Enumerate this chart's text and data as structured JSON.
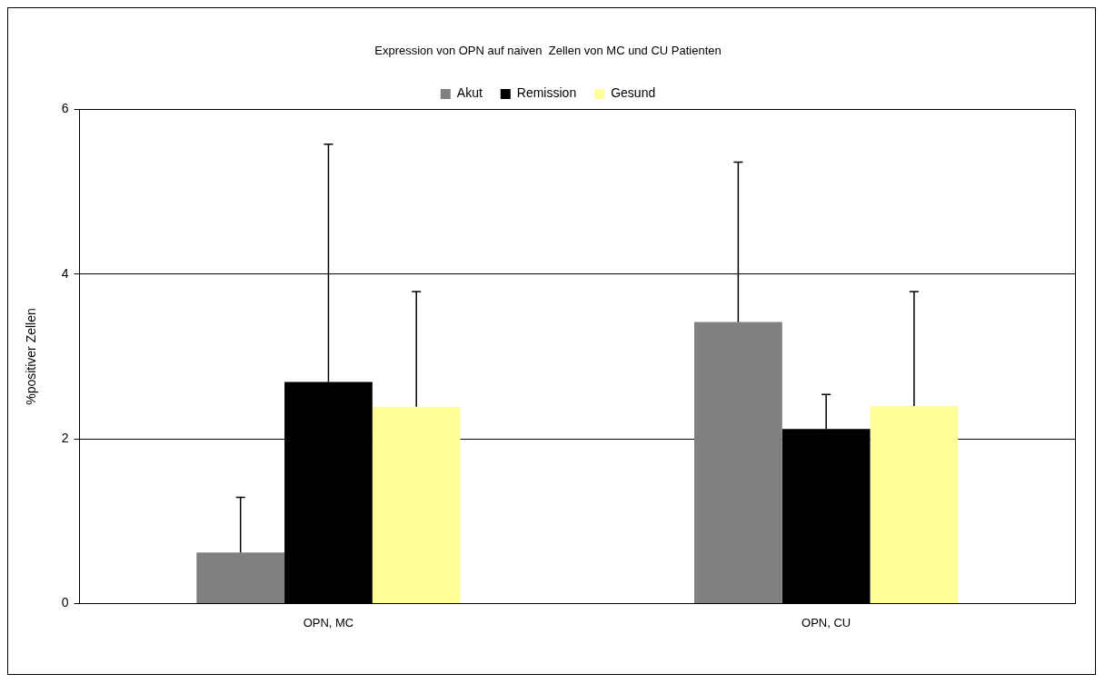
{
  "chart_data": {
    "type": "bar",
    "title": "Expression von OPN auf naiven  Zellen von MC und CU Patienten",
    "ylabel": "%positiver Zellen",
    "categories": [
      "OPN, MC",
      "OPN, CU"
    ],
    "series": [
      {
        "name": "Akut",
        "color": "#808080",
        "values": [
          0.62,
          3.42
        ],
        "errors": [
          [
            0.62,
            1.29
          ],
          [
            3.42,
            5.36
          ]
        ]
      },
      {
        "name": "Remission",
        "color": "#000000",
        "values": [
          2.69,
          2.12
        ],
        "errors": [
          [
            2.69,
            5.58
          ],
          [
            2.12,
            2.54
          ]
        ]
      },
      {
        "name": "Gesund",
        "color": "#ffff99",
        "values": [
          2.39,
          2.4
        ],
        "errors": [
          [
            2.39,
            3.79
          ],
          [
            2.4,
            3.79
          ]
        ]
      }
    ],
    "ylim": [
      0,
      6
    ],
    "yticks": [
      0,
      2,
      4,
      6
    ],
    "grid": "y",
    "legend": "top"
  }
}
